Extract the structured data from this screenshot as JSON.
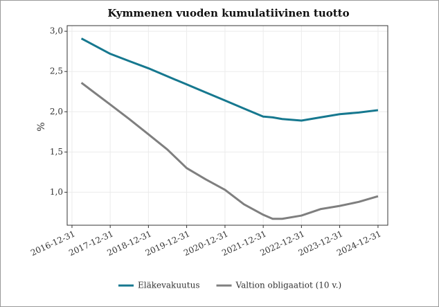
{
  "chart_data": {
    "type": "line",
    "title": "Kymmenen vuoden kumulatiivinen tuotto",
    "y_label": "%",
    "x": [
      "2017-03-31",
      "2017-12-31",
      "2018-06-30",
      "2018-12-31",
      "2019-06-30",
      "2019-12-31",
      "2020-06-30",
      "2020-12-31",
      "2021-06-30",
      "2021-12-31",
      "2022-03-31",
      "2022-06-30",
      "2022-12-31",
      "2023-06-30",
      "2023-12-31",
      "2024-06-30",
      "2024-12-31"
    ],
    "series": [
      {
        "name": "Eläkevakuutus",
        "color": "#16788f",
        "values": [
          2.91,
          2.72,
          2.63,
          2.54,
          2.44,
          2.34,
          2.24,
          2.14,
          2.04,
          1.94,
          1.93,
          1.91,
          1.89,
          1.93,
          1.97,
          1.99,
          2.02
        ]
      },
      {
        "name": "Valtion obligaatiot (10 v.)",
        "color": "#7f7f7f",
        "values": [
          2.36,
          2.09,
          1.91,
          1.72,
          1.53,
          1.3,
          1.16,
          1.03,
          0.85,
          0.72,
          0.67,
          0.67,
          0.71,
          0.79,
          0.83,
          0.88,
          0.95
        ]
      }
    ],
    "xlim": [
      "2016-11-15",
      "2025-04-03"
    ],
    "xticks": [
      "2016-12-31",
      "2017-12-31",
      "2018-12-31",
      "2019-12-31",
      "2020-12-31",
      "2021-12-31",
      "2022-12-31",
      "2023-12-31",
      "2024-12-31"
    ],
    "ylim": [
      0.59,
      3.07
    ],
    "yticks": [
      {
        "value": 1.0,
        "label": "1,0"
      },
      {
        "value": 1.5,
        "label": "1,5"
      },
      {
        "value": 2.0,
        "label": "2,0"
      },
      {
        "value": 2.5,
        "label": "2,5"
      },
      {
        "value": 3.0,
        "label": "3,0"
      }
    ],
    "grid": true,
    "legend": "bottom"
  }
}
